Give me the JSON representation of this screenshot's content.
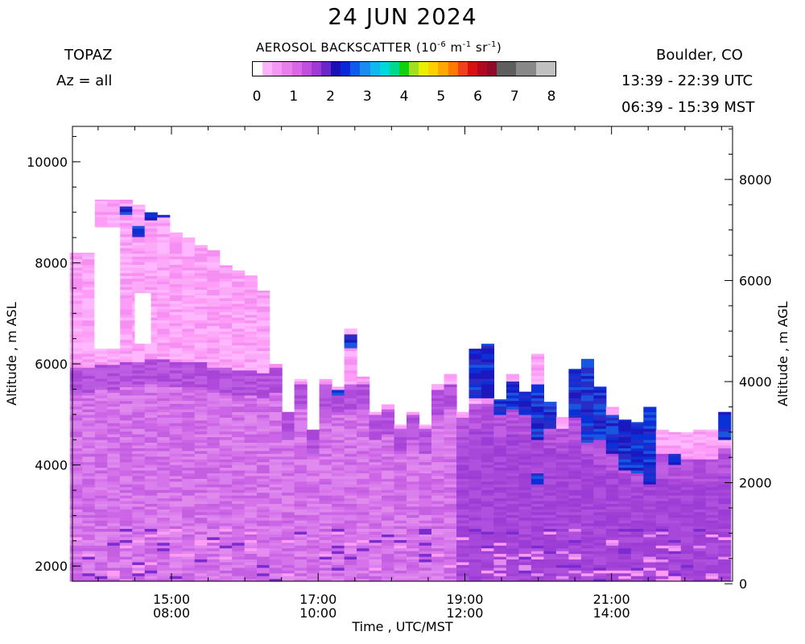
{
  "header": {
    "title": "24 JUN 2024",
    "instrument": "TOPAZ",
    "azimuth": "Az = all",
    "location": "Boulder, CO",
    "utc_range": "13:39 - 22:39 UTC",
    "local_range": "06:39 - 15:39 MST"
  },
  "colorbar": {
    "title_prefix": "AEROSOL BACKSCATTER (10",
    "exp1": "-6",
    "mid1": " m",
    "exp2": "-1",
    "mid2": " sr",
    "exp3": "-1",
    "suffix": ")",
    "ticks": [
      "0",
      "1",
      "2",
      "3",
      "4",
      "5",
      "6",
      "7",
      "8"
    ],
    "colors": [
      "#ffffff",
      "#ffb3ff",
      "#f598f5",
      "#e880ec",
      "#d868e4",
      "#bf50dc",
      "#a038d4",
      "#6a28c8",
      "#1a10b4",
      "#0a28d8",
      "#0f5ae8",
      "#1a8cf0",
      "#10b8f0",
      "#00d8d8",
      "#00d890",
      "#10d010",
      "#a0e020",
      "#e8f000",
      "#ffd000",
      "#ffa800",
      "#ff7800",
      "#f04020",
      "#d81010",
      "#b00820",
      "#900a28",
      "#5e5e5e",
      "#5e5e5e",
      "#888888",
      "#888888",
      "#c0c0c0",
      "#c0c0c0"
    ],
    "colors_note": ""
  },
  "chart_data": {
    "type": "heatmap",
    "title": "AEROSOL BACKSCATTER",
    "xlabel": "Time , UTC/MST",
    "ylabel_left": "Altitude , m ASL",
    "ylabel_right": "Altitude , m AGL",
    "xlim": [
      13.65,
      22.65
    ],
    "ylim": [
      1700,
      10700
    ],
    "y_ticks_left": [
      2000,
      4000,
      6000,
      8000,
      10000
    ],
    "y_ticks_right": [
      0,
      2000,
      4000,
      6000,
      8000
    ],
    "x_ticks": [
      {
        "utc": "15:00",
        "local": "08:00",
        "hour": 15
      },
      {
        "utc": "17:00",
        "local": "10:00",
        "hour": 17
      },
      {
        "utc": "19:00",
        "local": "12:00",
        "hour": 19
      },
      {
        "utc": "21:00",
        "local": "14:00",
        "hour": 21
      }
    ],
    "colorscale_min": 0,
    "colorscale_max": 8,
    "profiles": [
      {
        "t": 13.7,
        "top": 8200,
        "bl": 5900,
        "dark": []
      },
      {
        "t": 13.87,
        "top": 8200,
        "bl": 5900,
        "dark": []
      },
      {
        "t": 14.04,
        "top": 9250,
        "bl": 5950,
        "dark": []
      },
      {
        "t": 14.21,
        "top": 9250,
        "bl": 5950,
        "dark": []
      },
      {
        "t": 14.38,
        "top": 9250,
        "bl": 6000,
        "dark": [
          [
            8950,
            9100
          ]
        ]
      },
      {
        "t": 14.55,
        "top": 9150,
        "bl": 6000,
        "dark": [
          [
            8500,
            8700
          ]
        ]
      },
      {
        "t": 14.72,
        "top": 9000,
        "bl": 6050,
        "dark": [
          [
            8800,
            9000
          ]
        ]
      },
      {
        "t": 14.89,
        "top": 8950,
        "bl": 6050,
        "dark": [
          [
            8900,
            8950
          ]
        ]
      },
      {
        "t": 15.06,
        "top": 8600,
        "bl": 6000,
        "dark": []
      },
      {
        "t": 15.23,
        "top": 8500,
        "bl": 6000,
        "dark": []
      },
      {
        "t": 15.4,
        "top": 8350,
        "bl": 6000,
        "dark": []
      },
      {
        "t": 15.57,
        "top": 8250,
        "bl": 5900,
        "dark": []
      },
      {
        "t": 15.74,
        "top": 7950,
        "bl": 5900,
        "dark": []
      },
      {
        "t": 15.91,
        "top": 7850,
        "bl": 5850,
        "dark": []
      },
      {
        "t": 16.08,
        "top": 7750,
        "bl": 5850,
        "dark": []
      },
      {
        "t": 16.25,
        "top": 7450,
        "bl": 5800,
        "dark": []
      },
      {
        "t": 16.42,
        "top": 6000,
        "bl": 5900,
        "dark": []
      },
      {
        "t": 16.59,
        "top": 5050,
        "bl": 5000,
        "dark": []
      },
      {
        "t": 16.76,
        "top": 5700,
        "bl": 5600,
        "dark": []
      },
      {
        "t": 16.93,
        "top": 4700,
        "bl": 4700,
        "dark": []
      },
      {
        "t": 17.1,
        "top": 5700,
        "bl": 5600,
        "dark": []
      },
      {
        "t": 17.27,
        "top": 5550,
        "bl": 5450,
        "dark": [
          [
            5350,
            5450
          ]
        ]
      },
      {
        "t": 17.44,
        "top": 6700,
        "bl": 5600,
        "dark": [
          [
            6300,
            6550
          ]
        ]
      },
      {
        "t": 17.61,
        "top": 5750,
        "bl": 5600,
        "dark": []
      },
      {
        "t": 17.78,
        "top": 5050,
        "bl": 4950,
        "dark": []
      },
      {
        "t": 17.95,
        "top": 5200,
        "bl": 5100,
        "dark": []
      },
      {
        "t": 18.12,
        "top": 4800,
        "bl": 4700,
        "dark": []
      },
      {
        "t": 18.29,
        "top": 5050,
        "bl": 4950,
        "dark": []
      },
      {
        "t": 18.46,
        "top": 4800,
        "bl": 4700,
        "dark": []
      },
      {
        "t": 18.63,
        "top": 5600,
        "bl": 5450,
        "dark": []
      },
      {
        "t": 18.8,
        "top": 5800,
        "bl": 5600,
        "dark": []
      },
      {
        "t": 18.97,
        "top": 5050,
        "bl": 4900,
        "dark": []
      },
      {
        "t": 19.14,
        "top": 6300,
        "bl": 5200,
        "dark": [
          [
            5300,
            6300
          ]
        ]
      },
      {
        "t": 19.31,
        "top": 6400,
        "bl": 5200,
        "dark": [
          [
            5300,
            6400
          ]
        ]
      },
      {
        "t": 19.48,
        "top": 5300,
        "bl": 5000,
        "dark": [
          [
            5000,
            5300
          ]
        ]
      },
      {
        "t": 19.65,
        "top": 5800,
        "bl": 5100,
        "dark": [
          [
            5100,
            5650
          ]
        ]
      },
      {
        "t": 19.82,
        "top": 5450,
        "bl": 5000,
        "dark": [
          [
            5000,
            5450
          ]
        ]
      },
      {
        "t": 19.99,
        "top": 6200,
        "bl": 5000,
        "dark": [
          [
            4500,
            5600
          ],
          [
            3600,
            3800
          ]
        ]
      },
      {
        "t": 20.16,
        "top": 5250,
        "bl": 4800,
        "dark": [
          [
            4700,
            5250
          ]
        ]
      },
      {
        "t": 20.33,
        "top": 4950,
        "bl": 4700,
        "dark": []
      },
      {
        "t": 20.5,
        "top": 5900,
        "bl": 4900,
        "dark": [
          [
            4900,
            5900
          ]
        ]
      },
      {
        "t": 20.67,
        "top": 6100,
        "bl": 4700,
        "dark": [
          [
            4400,
            6100
          ]
        ]
      },
      {
        "t": 20.84,
        "top": 5550,
        "bl": 4500,
        "dark": [
          [
            4500,
            5550
          ]
        ]
      },
      {
        "t": 21.01,
        "top": 5150,
        "bl": 4300,
        "dark": [
          [
            4200,
            5000
          ]
        ]
      },
      {
        "t": 21.18,
        "top": 4900,
        "bl": 4200,
        "dark": [
          [
            3900,
            4900
          ]
        ]
      },
      {
        "t": 21.35,
        "top": 4850,
        "bl": 4150,
        "dark": [
          [
            3800,
            4850
          ]
        ]
      },
      {
        "t": 21.52,
        "top": 5150,
        "bl": 4200,
        "dark": [
          [
            3600,
            5150
          ]
        ]
      },
      {
        "t": 21.69,
        "top": 4700,
        "bl": 4200,
        "dark": []
      },
      {
        "t": 21.86,
        "top": 4650,
        "bl": 4100,
        "dark": [
          [
            4000,
            4200
          ]
        ]
      },
      {
        "t": 22.03,
        "top": 4650,
        "bl": 4100,
        "dark": []
      },
      {
        "t": 22.2,
        "top": 4700,
        "bl": 4100,
        "dark": []
      },
      {
        "t": 22.37,
        "top": 4700,
        "bl": 4100,
        "dark": []
      },
      {
        "t": 22.54,
        "top": 5050,
        "bl": 4300,
        "dark": [
          [
            4500,
            5050
          ]
        ]
      }
    ]
  }
}
